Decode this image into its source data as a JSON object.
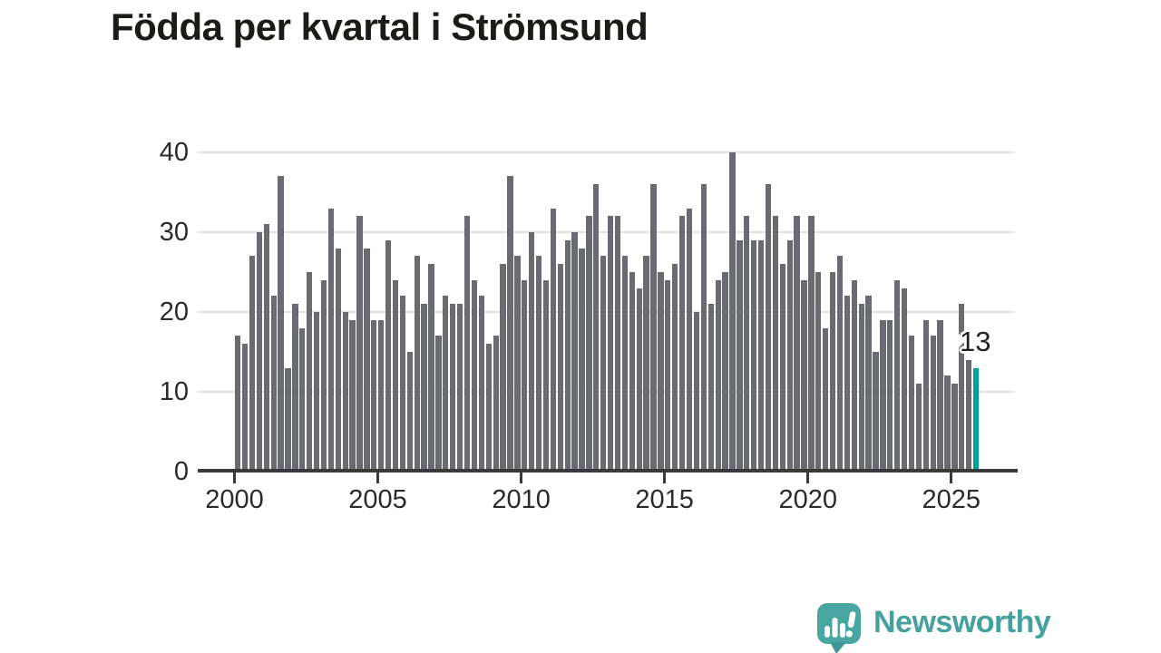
{
  "title": "Födda per kvartal i Strömsund",
  "annotation": {
    "text": "13",
    "target": "last-bar"
  },
  "footer": {
    "brand": "Newsworthy",
    "icon": "newsworthy-speech-bubble-chart-icon"
  },
  "colors": {
    "bar": "#6a6a72",
    "highlight": "#00a09a",
    "axis": "#3a3a3a",
    "grid": "#e1e1e1",
    "brand_teal": "#44a19d"
  },
  "chart_data": {
    "type": "bar",
    "title": "Födda per kvartal i Strömsund",
    "x_unit": "quarter",
    "x_start": "2000 Q1",
    "x_end": "2025 Q4",
    "x_tick_labels": [
      "2000",
      "2005",
      "2010",
      "2015",
      "2020",
      "2025"
    ],
    "x_tick_quarter_indices": [
      0,
      20,
      40,
      60,
      80,
      100
    ],
    "y_tick_labels": [
      "40",
      "30",
      "20",
      "10",
      "0"
    ],
    "y_ticks": [
      0,
      10,
      20,
      30,
      40
    ],
    "ylim": [
      0,
      42
    ],
    "grid": "horizontal",
    "legend": "none",
    "highlight_index": 103,
    "annotation_text": "13",
    "series": [
      {
        "name": "Födda per kvartal",
        "values": [
          17,
          16,
          27,
          30,
          31,
          22,
          37,
          13,
          21,
          18,
          25,
          20,
          24,
          33,
          28,
          20,
          19,
          32,
          28,
          19,
          19,
          29,
          24,
          22,
          15,
          27,
          21,
          26,
          17,
          22,
          21,
          21,
          32,
          24,
          22,
          16,
          17,
          26,
          37,
          27,
          24,
          30,
          27,
          24,
          33,
          26,
          29,
          30,
          28,
          32,
          36,
          27,
          32,
          32,
          27,
          25,
          23,
          27,
          36,
          25,
          24,
          26,
          32,
          33,
          20,
          36,
          21,
          24,
          25,
          40,
          29,
          32,
          29,
          29,
          36,
          32,
          26,
          29,
          32,
          24,
          32,
          25,
          18,
          25,
          27,
          22,
          24,
          21,
          22,
          15,
          19,
          19,
          24,
          23,
          17,
          11,
          19,
          17,
          19,
          12,
          11,
          21,
          14,
          13
        ]
      }
    ]
  }
}
